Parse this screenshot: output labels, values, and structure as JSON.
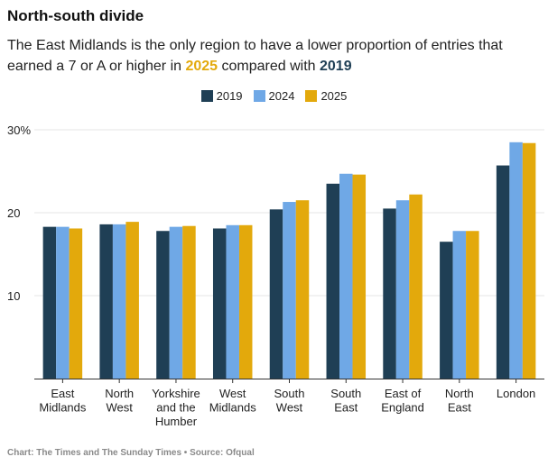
{
  "title": "North-south divide",
  "subtitle_parts": {
    "part1": "The East Midlands is the only region to have a lower proportion of entries that earned a 7 or A or higher in ",
    "highlight_2025": "2025",
    "part2": " compared with ",
    "highlight_2019": "2019"
  },
  "footer": "Chart: The Times and The Sunday Times • Source: Ofqual",
  "colors": {
    "y2019": "#1f3f55",
    "y2024": "#6fa8e6",
    "y2025": "#e3a90c"
  },
  "chart_data": {
    "type": "bar",
    "title": "North-south divide",
    "xlabel": "",
    "ylabel": "",
    "ylim": [
      0,
      30
    ],
    "yticks": [
      {
        "value": 10,
        "label": "10"
      },
      {
        "value": 20,
        "label": "20"
      },
      {
        "value": 30,
        "label": "30%"
      }
    ],
    "grid": true,
    "legend_position": "top-center",
    "categories": [
      [
        "East",
        "Midlands"
      ],
      [
        "North",
        "West"
      ],
      [
        "Yorkshire",
        "and the",
        "Humber"
      ],
      [
        "West",
        "Midlands"
      ],
      [
        "South",
        "West"
      ],
      [
        "South",
        "East"
      ],
      [
        "East of",
        "England"
      ],
      [
        "North",
        "East"
      ],
      [
        "London"
      ]
    ],
    "series": [
      {
        "name": "2019",
        "color": "#1f3f55",
        "values": [
          18.3,
          18.6,
          17.8,
          18.1,
          20.4,
          23.5,
          20.5,
          16.5,
          25.7
        ]
      },
      {
        "name": "2024",
        "color": "#6fa8e6",
        "values": [
          18.3,
          18.6,
          18.3,
          18.5,
          21.3,
          24.7,
          21.5,
          17.8,
          28.5
        ]
      },
      {
        "name": "2025",
        "color": "#e3a90c",
        "values": [
          18.1,
          18.9,
          18.4,
          18.5,
          21.5,
          24.6,
          22.2,
          17.8,
          28.4
        ]
      }
    ]
  }
}
